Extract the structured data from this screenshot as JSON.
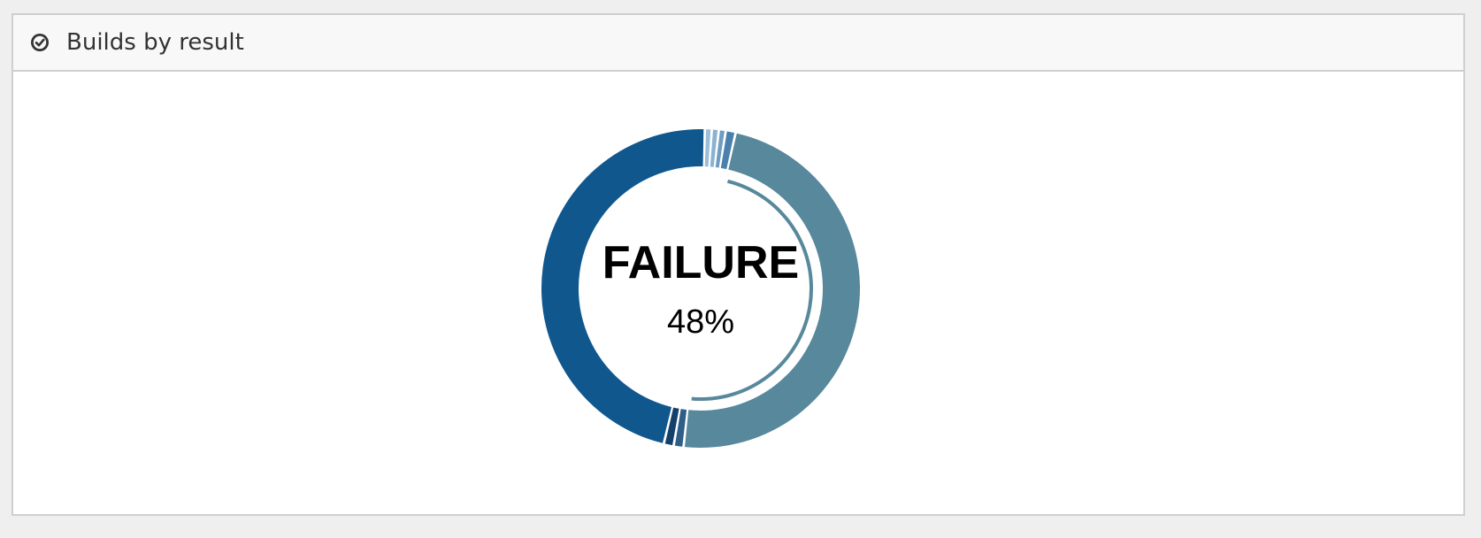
{
  "panel": {
    "title": "Builds by result",
    "icon": "check-circle-icon"
  },
  "chart_data": {
    "type": "pie",
    "style": "donut",
    "title": "Builds by result",
    "center_label": "FAILURE",
    "center_value": "48%",
    "highlighted": "FAILURE",
    "slices": [
      {
        "value": 0.7,
        "color": "#9bbdd9"
      },
      {
        "value": 0.7,
        "color": "#8ab2d3"
      },
      {
        "value": 0.7,
        "color": "#6f9dc2"
      },
      {
        "value": 1.0,
        "color": "#4a80ae"
      },
      {
        "name": "FAILURE",
        "value": 48.2,
        "color": "#57889b"
      },
      {
        "value": 1.0,
        "color": "#2f5e88"
      },
      {
        "value": 1.0,
        "color": "#15406a"
      },
      {
        "value": 46.7,
        "color": "#10578e"
      }
    ]
  }
}
